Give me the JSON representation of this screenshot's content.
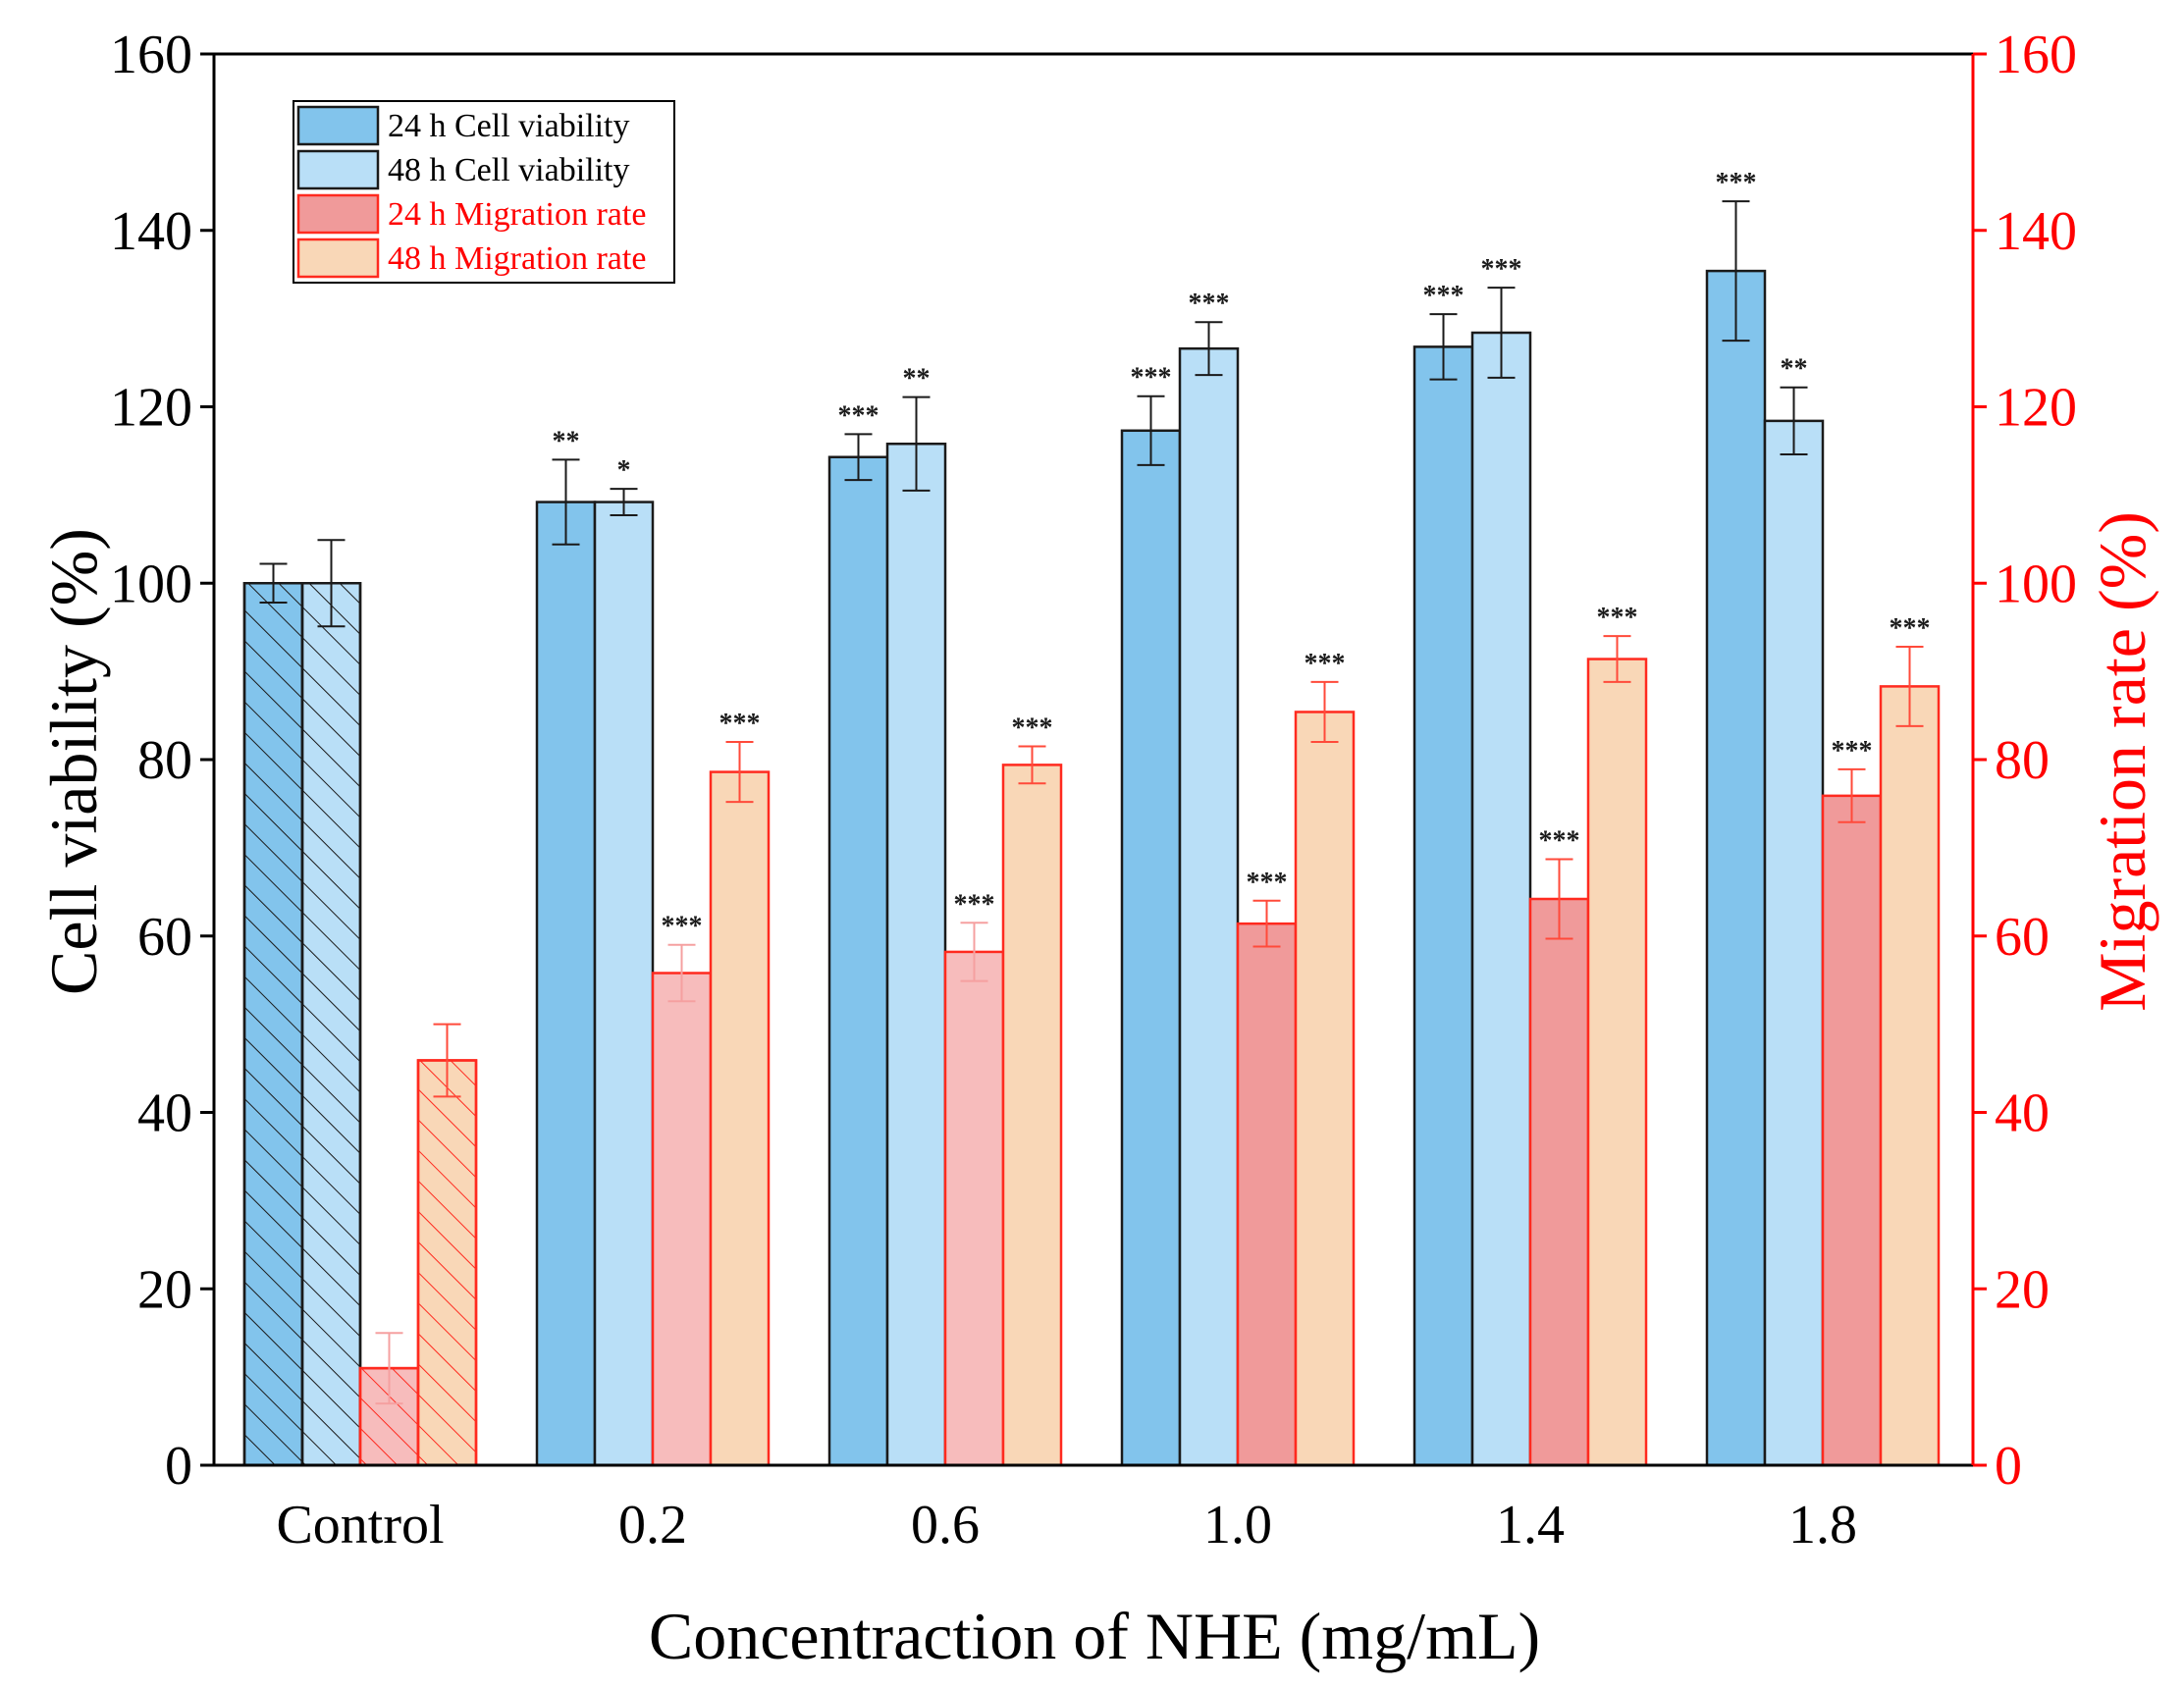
{
  "chart_data": {
    "type": "bar",
    "xlabel": "Concentraction of NHE (mg/mL)",
    "ylabel_left": "Cell viability (%)",
    "ylabel_right": "Migration rate (%)",
    "ylim": [
      0,
      160
    ],
    "yticks": [
      0,
      20,
      40,
      60,
      80,
      100,
      120,
      140,
      160
    ],
    "categories": [
      "Control",
      "0.2",
      "0.6",
      "1.0",
      "1.4",
      "1.8"
    ],
    "legend_position": "top-left",
    "series": [
      {
        "name": "24 h Cell viability",
        "axis": "left",
        "color": "#82c4ec",
        "values": [
          100,
          109.2,
          114.3,
          117.3,
          126.8,
          135.4
        ],
        "errors": [
          2.2,
          4.8,
          2.6,
          3.9,
          3.7,
          7.9
        ],
        "significance": [
          "",
          "**",
          "***",
          "***",
          "***",
          "***"
        ]
      },
      {
        "name": "48 h Cell viability",
        "axis": "left",
        "color": "#b9dff7",
        "values": [
          100,
          109.2,
          115.8,
          126.6,
          128.4,
          118.4
        ],
        "errors": [
          4.9,
          1.5,
          5.3,
          3.0,
          5.1,
          3.8
        ],
        "significance": [
          "",
          "*",
          "**",
          "***",
          "***",
          "**"
        ]
      },
      {
        "name": "24 h Migration rate",
        "axis": "right",
        "color": "#f09a9a",
        "light_color": "#f7bcbc",
        "values": [
          11,
          55.8,
          58.2,
          61.4,
          64.2,
          75.9
        ],
        "errors": [
          4.0,
          3.2,
          3.3,
          2.6,
          4.5,
          3.0
        ],
        "significance": [
          "",
          "***",
          "***",
          "***",
          "***",
          "***"
        ]
      },
      {
        "name": "48 h Migration rate",
        "axis": "right",
        "color": "#f9d7b7",
        "values": [
          45.9,
          78.6,
          79.4,
          85.4,
          91.4,
          88.3
        ],
        "errors": [
          4.1,
          3.4,
          2.1,
          3.4,
          2.6,
          4.5
        ],
        "significance": [
          "",
          "***",
          "***",
          "***",
          "***",
          "***"
        ]
      }
    ]
  },
  "colors": {
    "left_axis": "#000000",
    "right_axis": "#ff0000",
    "bar_outline_cell": "#1a1a1a",
    "bar_outline_migration": "#ff2a1f"
  }
}
